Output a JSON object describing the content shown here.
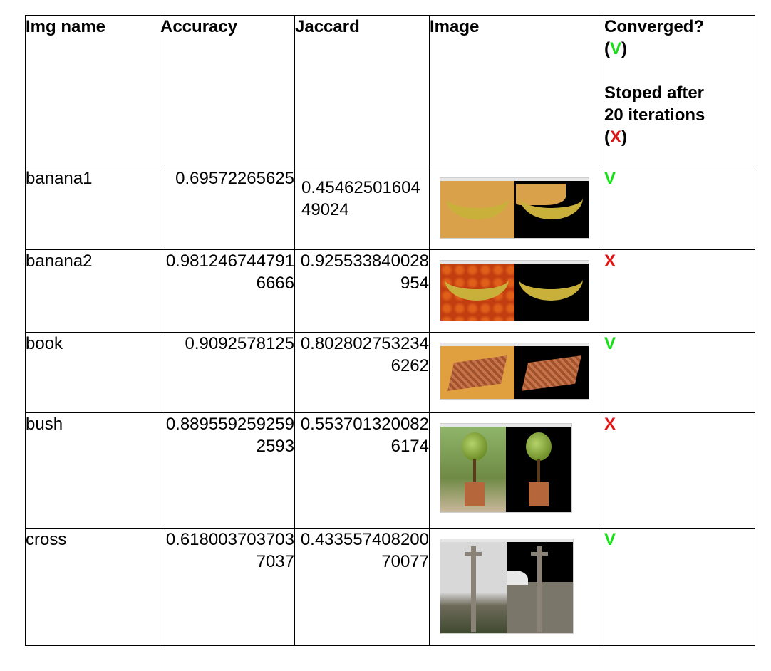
{
  "headers": {
    "img_name": "Img name",
    "accuracy": "Accuracy",
    "jaccard": "Jaccard",
    "image": "Image",
    "converged": "Converged?",
    "converged_yes_open": "(",
    "converged_yes_mark": "V",
    "converged_yes_close": ")",
    "stopped_line1": "Stoped after",
    "stopped_line2": "20 iterations",
    "converged_no_open": "(",
    "converged_no_mark": "X",
    "converged_no_close": ")"
  },
  "rows": [
    {
      "name": "banana1",
      "accuracy": "0.69572265625",
      "jaccard": "0.4546250160449024",
      "converged": "V"
    },
    {
      "name": "banana2",
      "accuracy": "0.9812467447916666",
      "jaccard": "0.925533840028954",
      "converged": "X"
    },
    {
      "name": "book",
      "accuracy": "0.9092578125",
      "jaccard": "0.8028027532346262",
      "converged": "V"
    },
    {
      "name": "bush",
      "accuracy": "0.8895592592592593",
      "jaccard": "0.5537013200826174",
      "converged": "X"
    },
    {
      "name": "cross",
      "accuracy": "0.6180037037037037",
      "jaccard": "0.43355740820070077",
      "converged": "V"
    }
  ],
  "colors": {
    "converged_yes": "#16e016",
    "converged_no": "#e01414"
  }
}
